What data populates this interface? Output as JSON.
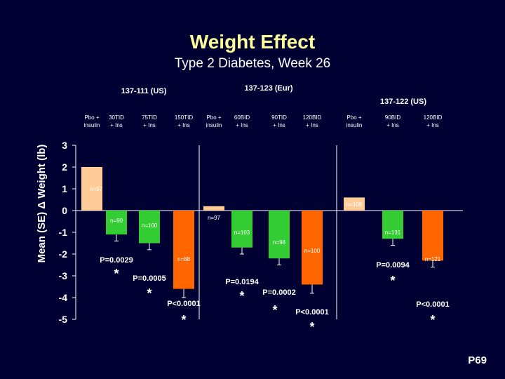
{
  "title": "Weight Effect",
  "subtitle": "Type 2 Diabetes, Week 26",
  "page_code": "P69",
  "colors": {
    "background": "#000033",
    "title": "#ffff99",
    "placebo": "#ffcc99",
    "low_dose": "#33cc33",
    "high_dose": "#ff6600"
  },
  "chart_data": {
    "type": "bar",
    "title": "",
    "ylabel": "Mean (SE) Δ Weight (lb)",
    "xlabel": "",
    "ylim": [
      -5,
      3
    ],
    "yticks": [
      3,
      2,
      1,
      0,
      -1,
      -2,
      -3,
      -4,
      -5
    ],
    "grid": false,
    "studies": [
      {
        "name": "137-111 (US)",
        "groups": [
          {
            "label_line1": "Pbo +",
            "label_line2": "insulin",
            "value": 2.0,
            "se": 0.0,
            "n_label": "n=97",
            "p_label": "",
            "star": false,
            "color": "placebo"
          },
          {
            "label_line1": "30TID",
            "label_line2": "+ Ins",
            "value": -1.1,
            "se": 0.3,
            "n_label": "n=90",
            "p_label": "P=0.0029",
            "star": true,
            "color": "low_dose"
          },
          {
            "label_line1": "75TID",
            "label_line2": "+ Ins",
            "value": -1.5,
            "se": 0.3,
            "n_label": "n=100",
            "p_label": "P=0.0005",
            "star": true,
            "color": "low_dose"
          },
          {
            "label_line1": "150TID",
            "label_line2": "+ Ins",
            "value": -3.6,
            "se": 0.4,
            "n_label": "n=88",
            "p_label": "P<0.0001",
            "star": true,
            "color": "high_dose"
          }
        ]
      },
      {
        "name": "137-123 (Eur)",
        "groups": [
          {
            "label_line1": "Pbo +",
            "label_line2": "insulin",
            "value": 0.2,
            "se": 0.0,
            "n_label": "n=97",
            "p_label": "",
            "star": false,
            "color": "placebo"
          },
          {
            "label_line1": "60BID",
            "label_line2": "+ Ins",
            "value": -1.7,
            "se": 0.3,
            "n_label": "n=103",
            "p_label": "P=0.0194",
            "star": true,
            "color": "low_dose"
          },
          {
            "label_line1": "90TID",
            "label_line2": "+ Ins",
            "value": -2.2,
            "se": 0.3,
            "n_label": "n=98",
            "p_label": "P=0.0002",
            "star": true,
            "color": "low_dose"
          },
          {
            "label_line1": "120BID",
            "label_line2": "+ Ins",
            "value": -3.4,
            "se": 0.4,
            "n_label": "n=100",
            "p_label": "P<0.0001",
            "star": true,
            "color": "high_dose"
          }
        ]
      },
      {
        "name": "137-122 (US)",
        "groups": [
          {
            "label_line1": "Pbo +",
            "label_line2": "insulin",
            "value": 0.6,
            "se": 0.0,
            "n_label": "n=108",
            "p_label": "",
            "star": false,
            "color": "placebo"
          },
          {
            "label_line1": "90BID",
            "label_line2": "+ Ins",
            "value": -1.3,
            "se": 0.3,
            "n_label": "n=131",
            "p_label": "P=0.0094",
            "star": true,
            "color": "low_dose"
          },
          {
            "label_line1": "120BID",
            "label_line2": "+ Ins",
            "value": -2.3,
            "se": 0.3,
            "n_label": "n=121",
            "p_label": "P<0.0001",
            "star": true,
            "color": "high_dose"
          }
        ]
      }
    ]
  }
}
